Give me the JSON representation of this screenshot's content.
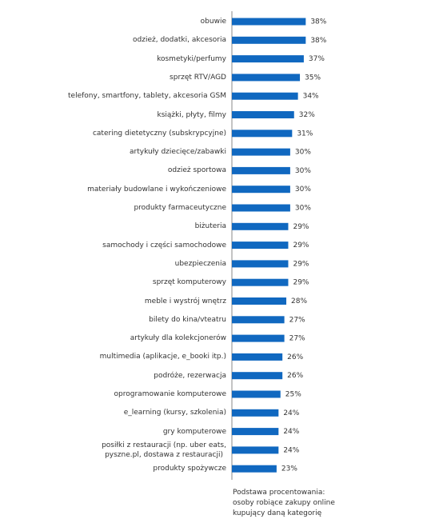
{
  "chart_data": {
    "type": "barh",
    "color": "#1068c0",
    "categories": [
      "obuwie",
      "odzież, dodatki, akcesoria",
      "kosmetyki/perfumy",
      "sprzęt RTV/AGD",
      "telefony, smartfony, tablety, akcesoria GSM",
      "książki, płyty, filmy",
      "catering dietetyczny (subskrypcyjne)",
      "artykuły dziecięce/zabawki",
      "odzież sportowa",
      "materiały budowlane i wykończeniowe",
      "produkty farmaceutyczne",
      "biżuteria",
      "samochody i części samochodowe",
      "ubezpieczenia",
      "sprzęt komputerowy",
      "meble i wystrój wnętrz",
      "bilety do kina/vteatru",
      "artykuły dla kolekcjonerów",
      "multimedia (aplikacje, e_booki itp.)",
      "podróże, rezerwacja",
      "oprogramowanie komputerowe",
      "e_learning (kursy, szkolenia)",
      "gry komputerowe",
      "posiłki z restauracji (np. uber eats,\npyszne.pl, dostawa z restauracji)",
      "produkty spożywcze"
    ],
    "values": [
      38,
      38,
      37,
      35,
      34,
      32,
      31,
      30,
      30,
      30,
      30,
      29,
      29,
      29,
      29,
      28,
      27,
      27,
      26,
      26,
      25,
      24,
      24,
      24,
      23
    ],
    "value_labels": [
      "38%",
      "38%",
      "37%",
      "35%",
      "34%",
      "32%",
      "31%",
      "30%",
      "30%",
      "30%",
      "30%",
      "29%",
      "29%",
      "29%",
      "29%",
      "28%",
      "27%",
      "27%",
      "26%",
      "26%",
      "25%",
      "24%",
      "24%",
      "24%",
      "23%"
    ],
    "note": [
      "Podstawa procentowania:",
      "osoby robiące zakupy online",
      "kupujący daną kategorię"
    ]
  }
}
